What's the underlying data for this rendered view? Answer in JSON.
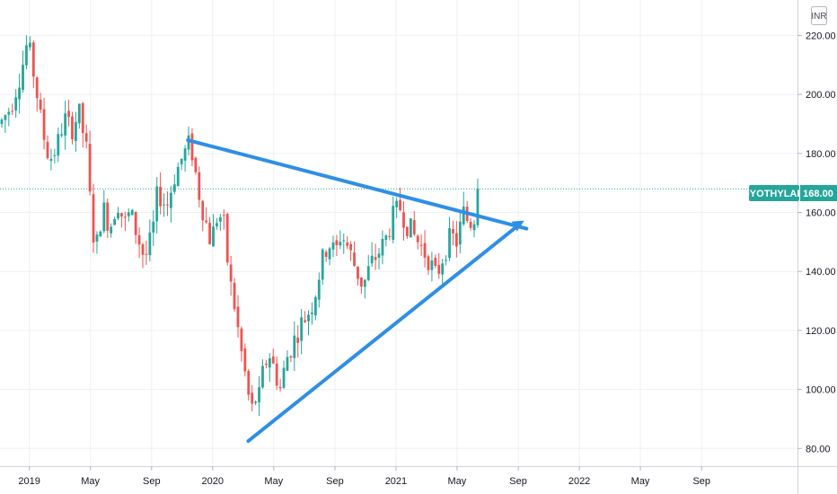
{
  "chart_data": {
    "type": "candlestick",
    "currency": "INR",
    "symbol": "JYOTHYLAB",
    "last_price": "168.00",
    "ylim": [
      74,
      232
    ],
    "y_ticks": [
      "80.00",
      "100.00",
      "120.00",
      "140.00",
      "160.00",
      "180.00",
      "200.00",
      "220.00"
    ],
    "x_ticks": [
      {
        "label": "2019",
        "t": 2019.0
      },
      {
        "label": "May",
        "t": 2019.333
      },
      {
        "label": "Sep",
        "t": 2019.667
      },
      {
        "label": "2020",
        "t": 2020.0
      },
      {
        "label": "May",
        "t": 2020.333
      },
      {
        "label": "Sep",
        "t": 2020.667
      },
      {
        "label": "2021",
        "t": 2021.0
      },
      {
        "label": "May",
        "t": 2021.333
      },
      {
        "label": "Sep",
        "t": 2021.667
      },
      {
        "label": "2022",
        "t": 2022.0
      },
      {
        "label": "May",
        "t": 2022.333
      },
      {
        "label": "Sep",
        "t": 2022.667
      }
    ],
    "xlim": [
      2018.84,
      2023.19
    ],
    "colors": {
      "up": "#26a69a",
      "down": "#ef5350",
      "trendline": "#2f8fe6",
      "label_bg": "#26a69a"
    },
    "price_path": [
      [
        2018.84,
        190
      ],
      [
        2018.9,
        196
      ],
      [
        2018.96,
        209
      ],
      [
        2018.99,
        218
      ],
      [
        2019.03,
        205
      ],
      [
        2019.07,
        188
      ],
      [
        2019.11,
        178
      ],
      [
        2019.15,
        182
      ],
      [
        2019.19,
        192
      ],
      [
        2019.23,
        188
      ],
      [
        2019.27,
        194
      ],
      [
        2019.31,
        182
      ],
      [
        2019.33,
        165
      ],
      [
        2019.36,
        146
      ],
      [
        2019.4,
        162
      ],
      [
        2019.44,
        155
      ],
      [
        2019.48,
        164
      ],
      [
        2019.52,
        156
      ],
      [
        2019.55,
        160
      ],
      [
        2019.59,
        152
      ],
      [
        2019.63,
        144
      ],
      [
        2019.67,
        152
      ],
      [
        2019.7,
        167
      ],
      [
        2019.75,
        162
      ],
      [
        2019.79,
        172
      ],
      [
        2019.83,
        178
      ],
      [
        2019.87,
        183
      ],
      [
        2019.89,
        180
      ],
      [
        2019.92,
        168
      ],
      [
        2019.95,
        160
      ],
      [
        2019.99,
        150
      ],
      [
        2020.03,
        160
      ],
      [
        2020.06,
        156
      ],
      [
        2020.09,
        138
      ],
      [
        2020.12,
        128
      ],
      [
        2020.15,
        115
      ],
      [
        2020.18,
        104
      ],
      [
        2020.21,
        92
      ],
      [
        2020.23,
        97
      ],
      [
        2020.25,
        96
      ],
      [
        2020.28,
        108
      ],
      [
        2020.31,
        112
      ],
      [
        2020.34,
        106
      ],
      [
        2020.37,
        100
      ],
      [
        2020.4,
        110
      ],
      [
        2020.44,
        116
      ],
      [
        2020.48,
        122
      ],
      [
        2020.52,
        126
      ],
      [
        2020.55,
        130
      ],
      [
        2020.59,
        142
      ],
      [
        2020.63,
        150
      ],
      [
        2020.67,
        146
      ],
      [
        2020.7,
        153
      ],
      [
        2020.74,
        148
      ],
      [
        2020.78,
        141
      ],
      [
        2020.82,
        135
      ],
      [
        2020.86,
        142
      ],
      [
        2020.9,
        146
      ],
      [
        2020.94,
        150
      ],
      [
        2020.98,
        158
      ],
      [
        2021.02,
        162
      ],
      [
        2021.06,
        156
      ],
      [
        2021.1,
        152
      ],
      [
        2021.14,
        148
      ],
      [
        2021.18,
        144
      ],
      [
        2021.22,
        138
      ],
      [
        2021.26,
        146
      ],
      [
        2021.3,
        152
      ],
      [
        2021.33,
        150
      ],
      [
        2021.37,
        160
      ],
      [
        2021.4,
        156
      ],
      [
        2021.44,
        160
      ],
      [
        2021.46,
        168
      ]
    ],
    "trendlines": [
      {
        "name": "upper",
        "start": [
          2019.865,
          184.5
        ],
        "end": [
          2021.712,
          154.5
        ]
      },
      {
        "name": "lower",
        "start": [
          2020.194,
          82.5
        ],
        "end": [
          2021.675,
          156.0
        ]
      }
    ],
    "arrow_tip": [
      2021.675,
      156.0
    ]
  }
}
